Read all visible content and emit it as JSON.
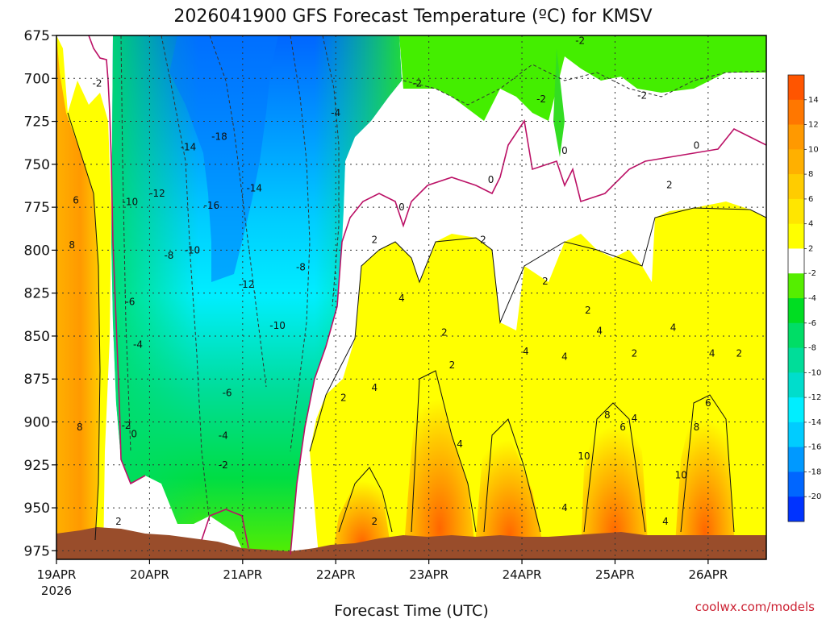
{
  "chart_data": {
    "type": "heatmap",
    "title": "2026041900 GFS Forecast Temperature (ºC) for KMSV",
    "xlabel": "Forecast Time (UTC)",
    "ylabel": "",
    "credit": "coolwx.com/models",
    "x_tick_labels": [
      "19APR",
      "20APR",
      "21APR",
      "22APR",
      "23APR",
      "24APR",
      "25APR",
      "26APR"
    ],
    "x_tick_values_hours": [
      0,
      24,
      48,
      72,
      96,
      120,
      144,
      168
    ],
    "x_tick_year": "2026",
    "x_range_hours": [
      0,
      183
    ],
    "y_tick_labels": [
      "675",
      "700",
      "725",
      "750",
      "775",
      "800",
      "825",
      "850",
      "875",
      "900",
      "925",
      "950",
      "975"
    ],
    "y_tick_values": [
      675,
      700,
      725,
      750,
      775,
      800,
      825,
      850,
      875,
      900,
      925,
      950,
      975
    ],
    "y_range": [
      675,
      980
    ],
    "y_inverted": true,
    "grid": true,
    "colorbar_labels": [
      "14",
      "12",
      "10",
      "8",
      "6",
      "4",
      "2",
      "-2",
      "-4",
      "-6",
      "-8",
      "-10",
      "-12",
      "-14",
      "-16",
      "-18",
      "-20"
    ],
    "colorbar_levels": [
      14,
      12,
      10,
      8,
      6,
      4,
      2,
      -2,
      -4,
      -6,
      -8,
      -10,
      -12,
      -14,
      -16,
      -18,
      -20
    ],
    "colorbar_colors": [
      "#ff5500",
      "#ff7700",
      "#ff9900",
      "#ffb000",
      "#ffcc00",
      "#ffe600",
      "#ffff00",
      "#ffffff",
      "#55ee00",
      "#00dd22",
      "#00dd66",
      "#00dd99",
      "#00ddcc",
      "#00eeff",
      "#00ccff",
      "#0099ff",
      "#0066ff",
      "#0033ff"
    ],
    "contour_labels": [
      {
        "text": "-2",
        "t": 10.5,
        "p": 703
      },
      {
        "text": "6",
        "t": 5,
        "p": 771
      },
      {
        "text": "8",
        "t": 4,
        "p": 797
      },
      {
        "text": "8",
        "t": 6,
        "p": 903
      },
      {
        "text": "-10",
        "t": 19,
        "p": 772
      },
      {
        "text": "-12",
        "t": 26,
        "p": 767
      },
      {
        "text": "-14",
        "t": 34,
        "p": 740
      },
      {
        "text": "-18",
        "t": 42,
        "p": 734
      },
      {
        "text": "-16",
        "t": 40,
        "p": 774
      },
      {
        "text": "-14",
        "t": 51,
        "p": 764
      },
      {
        "text": "-8",
        "t": 29,
        "p": 803
      },
      {
        "text": "-10",
        "t": 35,
        "p": 800
      },
      {
        "text": "-6",
        "t": 19,
        "p": 830
      },
      {
        "text": "-4",
        "t": 21,
        "p": 855
      },
      {
        "text": "-12",
        "t": 49,
        "p": 820
      },
      {
        "text": "-10",
        "t": 57,
        "p": 844
      },
      {
        "text": "-8",
        "t": 63,
        "p": 810
      },
      {
        "text": "-6",
        "t": 44,
        "p": 883
      },
      {
        "text": "-4",
        "t": 43,
        "p": 908
      },
      {
        "text": "-2",
        "t": 43,
        "p": 925
      },
      {
        "text": "-2",
        "t": 18,
        "p": 902
      },
      {
        "text": "0",
        "t": 20,
        "p": 907
      },
      {
        "text": "2",
        "t": 16,
        "p": 958
      },
      {
        "text": "-4",
        "t": 72,
        "p": 720
      },
      {
        "text": "-2",
        "t": 93,
        "p": 703
      },
      {
        "text": "0",
        "t": 89,
        "p": 775
      },
      {
        "text": "2",
        "t": 82,
        "p": 794
      },
      {
        "text": "2",
        "t": 74,
        "p": 886
      },
      {
        "text": "4",
        "t": 82,
        "p": 880
      },
      {
        "text": "4",
        "t": 89,
        "p": 828
      },
      {
        "text": "2",
        "t": 82,
        "p": 958
      },
      {
        "text": "2",
        "t": 100,
        "p": 848
      },
      {
        "text": "2",
        "t": 102,
        "p": 867
      },
      {
        "text": "2",
        "t": 110,
        "p": 794
      },
      {
        "text": "4",
        "t": 104,
        "p": 913
      },
      {
        "text": "0",
        "t": 112,
        "p": 759
      },
      {
        "text": "2",
        "t": 126,
        "p": 818
      },
      {
        "text": "4",
        "t": 121,
        "p": 859
      },
      {
        "text": "4",
        "t": 131,
        "p": 862
      },
      {
        "text": "4",
        "t": 131,
        "p": 950
      },
      {
        "text": "-2",
        "t": 125,
        "p": 712
      },
      {
        "text": "-2",
        "t": 135,
        "p": 678
      },
      {
        "text": "0",
        "t": 131,
        "p": 742
      },
      {
        "text": "2",
        "t": 137,
        "p": 835
      },
      {
        "text": "4",
        "t": 140,
        "p": 847
      },
      {
        "text": "8",
        "t": 142,
        "p": 896
      },
      {
        "text": "6",
        "t": 146,
        "p": 903
      },
      {
        "text": "4",
        "t": 149,
        "p": 898
      },
      {
        "text": "10",
        "t": 136,
        "p": 920
      },
      {
        "text": "2",
        "t": 149,
        "p": 860
      },
      {
        "text": "-2",
        "t": 151,
        "p": 710
      },
      {
        "text": "2",
        "t": 158,
        "p": 762
      },
      {
        "text": "0",
        "t": 165,
        "p": 739
      },
      {
        "text": "4",
        "t": 159,
        "p": 845
      },
      {
        "text": "4",
        "t": 169,
        "p": 860
      },
      {
        "text": "2",
        "t": 176,
        "p": 860
      },
      {
        "text": "6",
        "t": 168,
        "p": 889
      },
      {
        "text": "8",
        "t": 165,
        "p": 903
      },
      {
        "text": "10",
        "t": 161,
        "p": 931
      },
      {
        "text": "4",
        "t": 157,
        "p": 958
      }
    ]
  }
}
